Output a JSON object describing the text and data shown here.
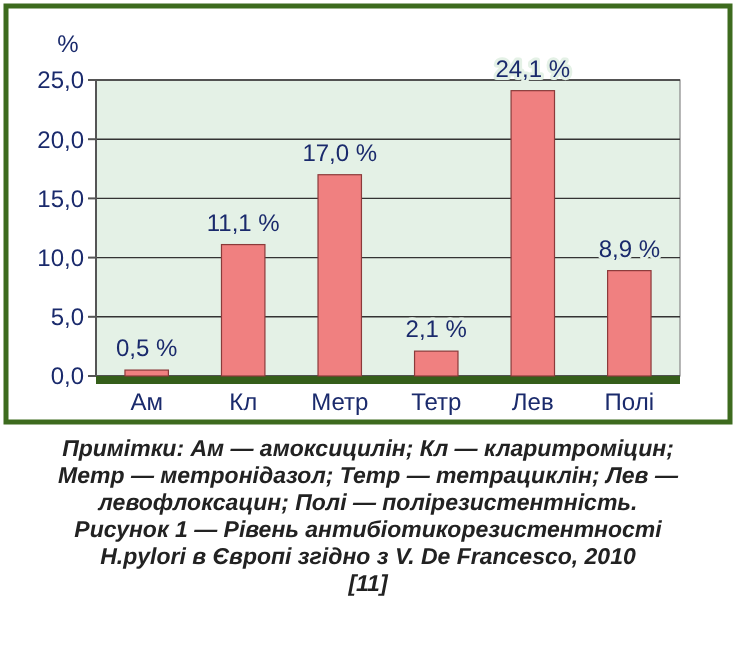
{
  "chart_data": {
    "type": "bar",
    "ylabel": "%",
    "categories": [
      "Ам",
      "Кл",
      "Метр",
      "Тетр",
      "Лев",
      "Полі"
    ],
    "values": [
      0.5,
      11.1,
      17.0,
      2.1,
      24.1,
      8.9
    ],
    "color": "#f08080",
    "value_labels": [
      "0,5 %",
      "11,1 %",
      "17,0 %",
      "2,1 %",
      "24,1 %",
      "8,9 %"
    ],
    "ylim": [
      0,
      25
    ],
    "yticks": [
      {
        "value": 0,
        "label": "0,0"
      },
      {
        "value": 5,
        "label": "5,0"
      },
      {
        "value": 10,
        "label": "10,0"
      },
      {
        "value": 15,
        "label": "15,0"
      },
      {
        "value": 20,
        "label": "20,0"
      },
      {
        "value": 25,
        "label": "25,0"
      }
    ],
    "grid": "y",
    "annotations": [
      "Примітки: Ам — амоксицилін; Кл — кларитроміцин; Метр — метронідазол; Тетр — тетрациклін; Лев — левофлоксацин; Полі — полірезистентність.",
      "Рисунок 1 — Рівень антибіотикорезистентності H.pylori в Європі згідно з V. De Francesco, 2010 [11]"
    ]
  }
}
